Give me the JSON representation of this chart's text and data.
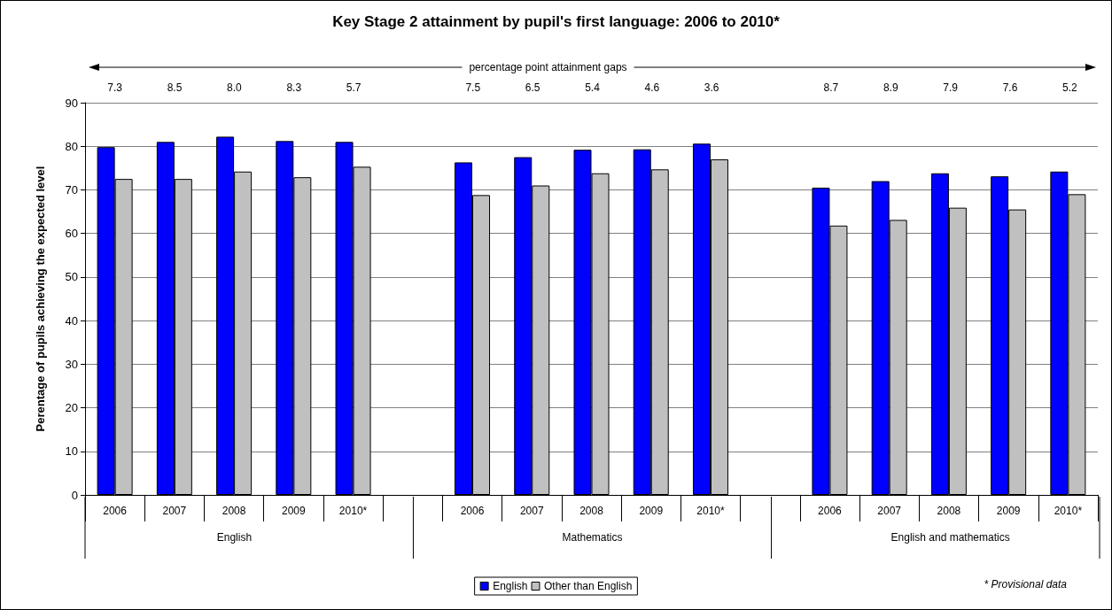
{
  "chart_data": {
    "type": "bar",
    "title": "Key Stage 2 attainment by pupil's first language: 2006 to 2010*",
    "ylabel": "Perentage of pupils achieving the expected level",
    "categories": [
      "2006",
      "2007",
      "2008",
      "2009",
      "2010*",
      null,
      "2006",
      "2007",
      "2008",
      "2009",
      "2010*",
      null,
      "2006",
      "2007",
      "2008",
      "2009",
      "2010*"
    ],
    "series": [
      {
        "name": "English",
        "color": "#0000ff",
        "values": [
          79.8,
          81.0,
          82.2,
          81.2,
          81.0,
          null,
          76.3,
          77.5,
          79.2,
          79.3,
          80.6,
          null,
          70.5,
          72.0,
          73.8,
          73.1,
          74.2
        ]
      },
      {
        "name": "Other than English",
        "color": "#c0c0c0",
        "values": [
          72.5,
          72.5,
          74.2,
          72.9,
          75.3,
          null,
          68.8,
          71.0,
          73.8,
          74.7,
          77.0,
          null,
          61.8,
          63.1,
          65.9,
          65.5,
          69.0
        ]
      }
    ],
    "ylim": [
      0,
      90
    ],
    "yticks": [
      0,
      10,
      20,
      30,
      40,
      50,
      60,
      70,
      80,
      90
    ],
    "grid": "y",
    "legend": "bottom",
    "annotations": [
      "percentage point attainment gaps",
      "7.3",
      "8.5",
      "8.0",
      "8.3",
      "5.7",
      "7.5",
      "6.5",
      "5.4",
      "4.6",
      "3.6",
      "8.7",
      "8.9",
      "7.9",
      "7.6",
      "5.2",
      "English",
      "Mathematics",
      "English and mathematics",
      "* Provisional data"
    ]
  }
}
